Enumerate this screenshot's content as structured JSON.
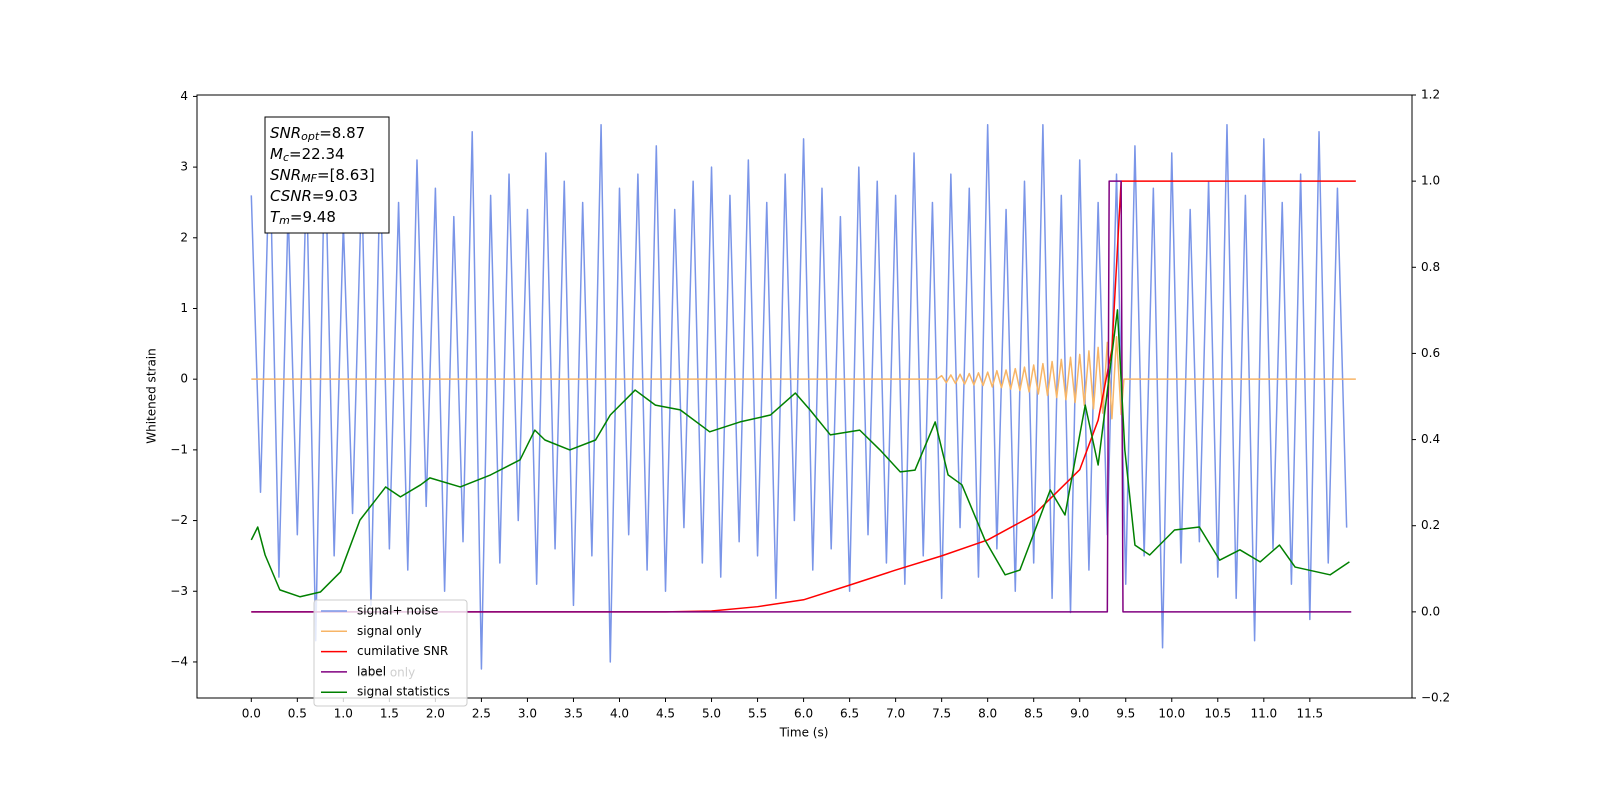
{
  "chart_data": {
    "type": "line",
    "xlabel": "Time (s)",
    "ylabel": "Whitened strain",
    "xlim": [
      -0.59,
      12.61
    ],
    "ylim": [
      -4.51,
      4.02
    ],
    "y2lim": [
      -0.2,
      1.2
    ],
    "xticks": [
      {
        "value": 0,
        "label": "0.0"
      },
      0.5,
      {
        "value": 1,
        "label": "1.0"
      },
      1.5,
      {
        "value": 2,
        "label": "2.0"
      },
      2.5,
      {
        "value": 3,
        "label": "3.0"
      },
      3.5,
      {
        "value": 4,
        "label": "4.0"
      },
      4.5,
      {
        "value": 5,
        "label": "5.0"
      },
      5.5,
      {
        "value": 6,
        "label": "6.0"
      },
      6.5,
      {
        "value": 7,
        "label": "7.0"
      },
      7.5,
      {
        "value": 8,
        "label": "8.0"
      },
      8.5,
      {
        "value": 9,
        "label": "9.0"
      },
      9.5,
      {
        "value": 10,
        "label": "10.0"
      },
      10.5,
      {
        "value": 11,
        "label": "11.0"
      },
      11.5
    ],
    "yticks": [
      {
        "value": -4,
        "label": "−4"
      },
      {
        "value": -3,
        "label": "−3"
      },
      {
        "value": -2,
        "label": "−2"
      },
      {
        "value": -1,
        "label": "−1"
      },
      0,
      1,
      2,
      3,
      4
    ],
    "y2ticks": [
      {
        "value": -0.2,
        "label": "−0.2"
      },
      {
        "value": 0,
        "label": "0.0"
      },
      0.2,
      0.4,
      0.6,
      0.8,
      {
        "value": 1,
        "label": "1.0"
      },
      1.2
    ],
    "grid": false,
    "legend_loc": "lower left",
    "legend_faded_label": "label only",
    "annotation": [
      {
        "symbol": "SNR",
        "sub": "opt",
        "text": "=8.87"
      },
      {
        "symbol": "M",
        "sub": "c",
        "text": "=22.34"
      },
      {
        "symbol": "SNR",
        "sub": "MF",
        "text": "=[8.63]"
      },
      {
        "symbol": "CSNR",
        "sub": "",
        "text": "=9.03"
      },
      {
        "symbol": "T",
        "sub": "m",
        "text": "=9.48"
      }
    ],
    "series": [
      {
        "name": "signal+ noise",
        "color": "#7a95e8",
        "x": [
          0,
          0.1,
          0.2,
          0.3,
          0.4,
          0.5,
          0.6,
          0.7,
          0.8,
          0.9,
          1,
          1.1,
          1.2,
          1.3,
          1.4,
          1.5,
          1.6,
          1.7,
          1.8,
          1.9,
          2,
          2.1,
          2.2,
          2.3,
          2.4,
          2.5,
          2.6,
          2.7,
          2.8,
          2.9,
          3,
          3.1,
          3.2,
          3.3,
          3.4,
          3.5,
          3.6,
          3.7,
          3.8,
          3.9,
          4,
          4.1,
          4.2,
          4.3,
          4.4,
          4.5,
          4.6,
          4.7,
          4.8,
          4.9,
          5,
          5.1,
          5.2,
          5.3,
          5.4,
          5.5,
          5.6,
          5.7,
          5.8,
          5.9,
          6,
          6.1,
          6.2,
          6.3,
          6.4,
          6.5,
          6.6,
          6.7,
          6.8,
          6.9,
          7,
          7.1,
          7.2,
          7.3,
          7.4,
          7.5,
          7.6,
          7.7,
          7.8,
          7.9,
          8,
          8.1,
          8.2,
          8.3,
          8.4,
          8.5,
          8.6,
          8.7,
          8.8,
          8.9,
          9,
          9.1,
          9.2,
          9.3,
          9.4,
          9.5,
          9.6,
          9.7,
          9.8,
          9.9,
          10,
          10.1,
          10.2,
          10.3,
          10.4,
          10.5,
          10.6,
          10.7,
          10.8,
          10.9,
          11,
          11.1,
          11.2,
          11.3,
          11.4,
          11.5,
          11.6,
          11.7,
          11.8,
          11.9
        ],
        "values": [
          2.6,
          -1.6,
          3.3,
          -2.8,
          2.4,
          -2.2,
          2.9,
          -3.7,
          3.4,
          -2.5,
          2.2,
          -1.9,
          2.8,
          -3.2,
          3.0,
          -2.4,
          2.5,
          -2.7,
          3.1,
          -1.8,
          2.7,
          -3.0,
          2.3,
          -2.3,
          3.5,
          -4.1,
          2.6,
          -2.6,
          2.9,
          -2.0,
          2.4,
          -2.9,
          3.2,
          -2.4,
          2.8,
          -3.2,
          2.5,
          -2.5,
          3.6,
          -4.0,
          2.7,
          -2.2,
          2.9,
          -2.7,
          3.3,
          -3.0,
          2.4,
          -2.1,
          2.8,
          -2.6,
          3.0,
          -2.8,
          2.6,
          -2.3,
          3.1,
          -2.5,
          2.5,
          -3.1,
          2.9,
          -2.0,
          3.4,
          -2.7,
          2.7,
          -2.4,
          2.3,
          -3.0,
          3.0,
          -2.2,
          2.8,
          -2.6,
          2.6,
          -2.9,
          3.2,
          -2.5,
          2.5,
          -3.1,
          2.9,
          -2.1,
          2.7,
          -2.8,
          3.6,
          -2.4,
          2.4,
          -3.0,
          2.8,
          -2.6,
          3.6,
          -3.1,
          2.6,
          -3.3,
          3.1,
          -2.7,
          2.5,
          -2.2,
          2.9,
          -2.9,
          3.3,
          -2.5,
          2.7,
          -3.8,
          3.2,
          -2.6,
          2.4,
          -2.3,
          2.8,
          -2.8,
          3.6,
          -3.1,
          2.6,
          -3.7,
          3.4,
          -2.4,
          2.5,
          -2.9,
          2.9,
          -3.4,
          3.5,
          -2.6,
          2.7,
          -2.1
        ]
      },
      {
        "name": "signal only",
        "color": "#f7b567",
        "x": [
          0,
          7.45,
          7.5,
          7.55,
          7.6,
          7.65,
          7.7,
          7.75,
          7.8,
          7.85,
          7.9,
          7.95,
          8,
          8.05,
          8.1,
          8.15,
          8.2,
          8.25,
          8.3,
          8.35,
          8.4,
          8.45,
          8.5,
          8.55,
          8.6,
          8.65,
          8.7,
          8.75,
          8.8,
          8.85,
          8.9,
          8.95,
          9,
          9.05,
          9.1,
          9.15,
          9.2,
          9.25,
          9.3,
          9.35,
          9.4,
          9.45,
          9.48,
          12
        ],
        "values": [
          0,
          0,
          0.05,
          -0.05,
          0.06,
          -0.06,
          0.07,
          -0.07,
          0.08,
          -0.08,
          0.09,
          -0.09,
          0.1,
          -0.11,
          0.12,
          -0.12,
          0.13,
          -0.14,
          0.15,
          -0.16,
          0.17,
          -0.18,
          0.2,
          -0.21,
          0.22,
          -0.23,
          0.25,
          -0.26,
          0.28,
          -0.29,
          0.31,
          -0.33,
          0.35,
          -0.37,
          0.4,
          -0.42,
          0.45,
          -0.48,
          0.52,
          -0.56,
          0.6,
          -0.5,
          0,
          0
        ]
      },
      {
        "name": "cumilative SNR",
        "color": "#ff0000",
        "axis": "y2",
        "x": [
          0,
          4.5,
          5,
          5.5,
          6,
          6.5,
          7,
          7.5,
          8,
          8.5,
          9,
          9.2,
          9.35,
          9.45,
          12
        ],
        "values": [
          0,
          0,
          0.002,
          0.012,
          0.028,
          0.062,
          0.097,
          0.13,
          0.167,
          0.225,
          0.33,
          0.445,
          0.61,
          1.0,
          1.0
        ]
      },
      {
        "name": "label",
        "color": "#800080",
        "axis": "y2",
        "x": [
          0,
          9.3,
          9.32,
          9.45,
          9.47,
          11.95
        ],
        "values": [
          0,
          0,
          1,
          1,
          0,
          0
        ]
      },
      {
        "name": "signal statistics",
        "color": "#008000",
        "axis": "y2",
        "x": [
          0,
          0.07,
          0.15,
          0.31,
          0.53,
          0.75,
          0.97,
          1.18,
          1.46,
          1.62,
          1.84,
          1.94,
          2.27,
          2.6,
          2.92,
          3.08,
          3.19,
          3.46,
          3.74,
          3.9,
          4.17,
          4.39,
          4.66,
          4.98,
          5.31,
          5.64,
          5.91,
          6.07,
          6.29,
          6.61,
          6.83,
          7.05,
          7.21,
          7.43,
          7.57,
          7.72,
          7.97,
          8.19,
          8.35,
          8.68,
          8.84,
          9.06,
          9.2,
          9.41,
          9.49,
          9.6,
          9.76,
          10.03,
          10.3,
          10.52,
          10.74,
          10.96,
          11.17,
          11.34,
          11.72,
          11.93
        ],
        "values": [
          0.167,
          0.197,
          0.132,
          0.051,
          0.035,
          0.046,
          0.093,
          0.213,
          0.29,
          0.267,
          0.295,
          0.311,
          0.29,
          0.318,
          0.353,
          0.422,
          0.399,
          0.376,
          0.399,
          0.457,
          0.515,
          0.48,
          0.469,
          0.418,
          0.441,
          0.457,
          0.508,
          0.469,
          0.411,
          0.422,
          0.376,
          0.325,
          0.329,
          0.441,
          0.318,
          0.295,
          0.167,
          0.086,
          0.097,
          0.283,
          0.225,
          0.48,
          0.341,
          0.701,
          0.376,
          0.155,
          0.132,
          0.19,
          0.197,
          0.12,
          0.144,
          0.116,
          0.155,
          0.104,
          0.086,
          0.116
        ]
      }
    ]
  }
}
